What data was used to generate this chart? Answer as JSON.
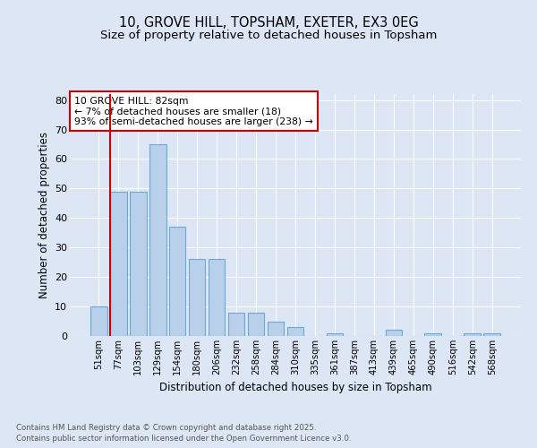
{
  "title1": "10, GROVE HILL, TOPSHAM, EXETER, EX3 0EG",
  "title2": "Size of property relative to detached houses in Topsham",
  "xlabel": "Distribution of detached houses by size in Topsham",
  "ylabel": "Number of detached properties",
  "categories": [
    "51sqm",
    "77sqm",
    "103sqm",
    "129sqm",
    "154sqm",
    "180sqm",
    "206sqm",
    "232sqm",
    "258sqm",
    "284sqm",
    "310sqm",
    "335sqm",
    "361sqm",
    "387sqm",
    "413sqm",
    "439sqm",
    "465sqm",
    "490sqm",
    "516sqm",
    "542sqm",
    "568sqm"
  ],
  "values": [
    10,
    49,
    49,
    65,
    37,
    26,
    26,
    8,
    8,
    5,
    3,
    0,
    1,
    0,
    0,
    2,
    0,
    1,
    0,
    1,
    1
  ],
  "bar_color": "#b8d0ea",
  "bar_edge_color": "#6aaad4",
  "ylim": [
    0,
    82
  ],
  "yticks": [
    0,
    10,
    20,
    30,
    40,
    50,
    60,
    70,
    80
  ],
  "vline_color": "#cc0000",
  "annotation_text": "10 GROVE HILL: 82sqm\n← 7% of detached houses are smaller (18)\n93% of semi-detached houses are larger (238) →",
  "annotation_box_color": "#ffffff",
  "annotation_box_edge": "#cc0000",
  "bg_color": "#dce6f5",
  "plot_bg": "#dce6f5",
  "footer1": "Contains HM Land Registry data © Crown copyright and database right 2025.",
  "footer2": "Contains public sector information licensed under the Open Government Licence v3.0.",
  "grid_color": "#ffffff",
  "title_fontsize": 10.5,
  "subtitle_fontsize": 9.5
}
